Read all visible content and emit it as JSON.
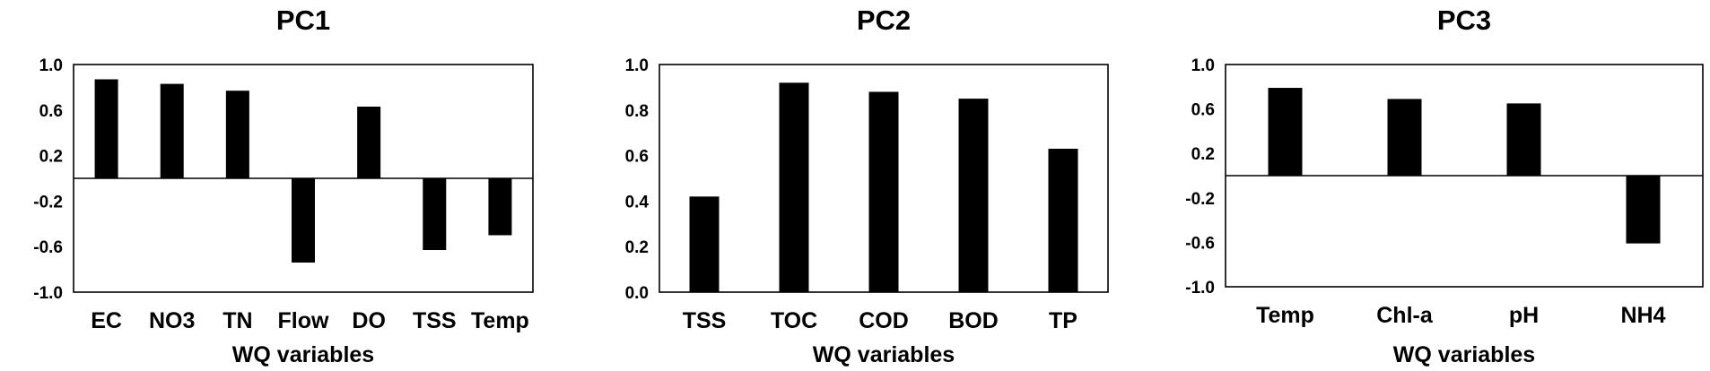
{
  "chart_data": [
    {
      "type": "bar",
      "title": "PC1",
      "xlabel": "WQ variables",
      "ylabel": "",
      "categories": [
        "EC",
        "NO3",
        "TN",
        "Flow",
        "DO",
        "TSS",
        "Temp"
      ],
      "values": [
        0.87,
        0.83,
        0.77,
        -0.74,
        0.63,
        -0.63,
        -0.5
      ],
      "ylim": [
        -1.0,
        1.0
      ],
      "yticks": [
        "1.0",
        "0.6",
        "0.2",
        "-0.2",
        "-0.6",
        "-1.0"
      ],
      "zero_line": true,
      "bar_color": "#000000",
      "grid": false
    },
    {
      "type": "bar",
      "title": "PC2",
      "xlabel": "WQ variables",
      "ylabel": "",
      "categories": [
        "TSS",
        "TOC",
        "COD",
        "BOD",
        "TP"
      ],
      "values": [
        0.42,
        0.92,
        0.88,
        0.85,
        0.63
      ],
      "ylim": [
        0.0,
        1.0
      ],
      "yticks": [
        "1.0",
        "0.8",
        "0.6",
        "0.4",
        "0.2",
        "0.0"
      ],
      "zero_line": false,
      "bar_color": "#000000",
      "grid": false
    },
    {
      "type": "bar",
      "title": "PC3",
      "xlabel": "WQ variables",
      "ylabel": "",
      "categories": [
        "Temp",
        "Chl-a",
        "pH",
        "NH4"
      ],
      "values": [
        0.79,
        0.69,
        0.65,
        -0.61
      ],
      "ylim": [
        -1.0,
        1.0
      ],
      "yticks": [
        "1.0",
        "0.6",
        "0.2",
        "-0.2",
        "-0.6",
        "-1.0"
      ],
      "zero_line": true,
      "bar_color": "#000000",
      "grid": false
    }
  ]
}
